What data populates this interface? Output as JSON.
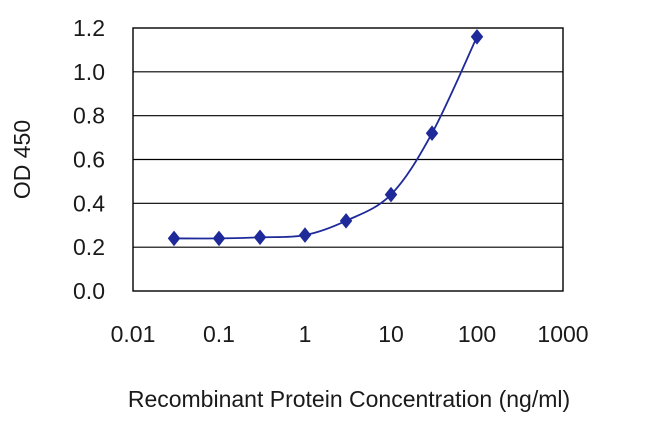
{
  "chart_data": {
    "type": "line",
    "title": "",
    "xlabel": "Recombinant Protein Concentration (ng/ml)",
    "ylabel": "OD 450",
    "x_scale": "log",
    "xlim": [
      0.01,
      1000
    ],
    "ylim": [
      0.0,
      1.2
    ],
    "x_ticks": [
      0.01,
      0.1,
      1,
      10,
      100,
      1000
    ],
    "x_tick_labels": [
      "0.01",
      "0.1",
      "1",
      "10",
      "100",
      "1000"
    ],
    "y_ticks": [
      0.0,
      0.2,
      0.4,
      0.6,
      0.8,
      1.0,
      1.2
    ],
    "y_tick_labels": [
      "0.0",
      "0.2",
      "0.4",
      "0.6",
      "0.8",
      "1.0",
      "1.2"
    ],
    "grid": "horizontal",
    "legend": "none",
    "series": [
      {
        "x": [
          0.03,
          0.1,
          0.3,
          1,
          3,
          10,
          30,
          100
        ],
        "y": [
          0.24,
          0.24,
          0.245,
          0.255,
          0.32,
          0.44,
          0.72,
          1.16
        ],
        "marker": "diamond",
        "smooth": true
      }
    ],
    "colors": {
      "series": "#1f2a9a",
      "frame": "#000000",
      "grid": "#000000"
    }
  }
}
